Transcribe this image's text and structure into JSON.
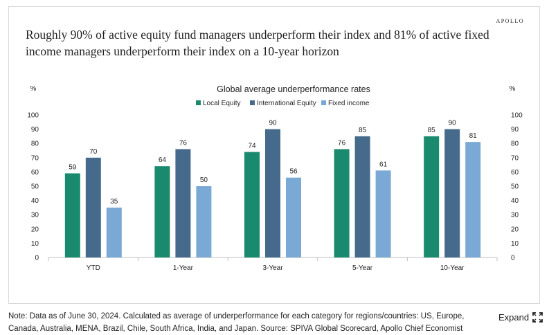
{
  "brand": "APOLLO",
  "headline": "Roughly 90% of active equity fund managers underperform their index and 81% of active fixed income managers underperform their index on a 10-year horizon",
  "note": "Note: Data as of June 30, 2024. Calculated as average of underperformance for each category for regions/countries: US, Europe, Canada, Australia, MENA, Brazil, Chile, South Africa, India, and Japan. Source: SPIVA Global Scorecard, Apollo Chief Economist",
  "expand_label": "Expand",
  "chart_data": {
    "type": "bar",
    "title": "Global average underperformance rates",
    "y_unit_left": "%",
    "y_unit_right": "%",
    "categories": [
      "YTD",
      "1-Year",
      "3-Year",
      "5-Year",
      "10-Year"
    ],
    "series": [
      {
        "name": "Local Equity",
        "color": "#1a8a6e",
        "values": [
          59,
          64,
          74,
          76,
          85
        ]
      },
      {
        "name": "International Equity",
        "color": "#466a8c",
        "values": [
          70,
          76,
          90,
          85,
          90
        ]
      },
      {
        "name": "Fixed income",
        "color": "#7ba9d6",
        "values": [
          35,
          50,
          56,
          61,
          81
        ]
      }
    ],
    "ylim": [
      0,
      100
    ],
    "yticks": [
      0,
      10,
      20,
      30,
      40,
      50,
      60,
      70,
      80,
      90,
      100
    ],
    "legend_position": "top-center",
    "grid": false
  }
}
